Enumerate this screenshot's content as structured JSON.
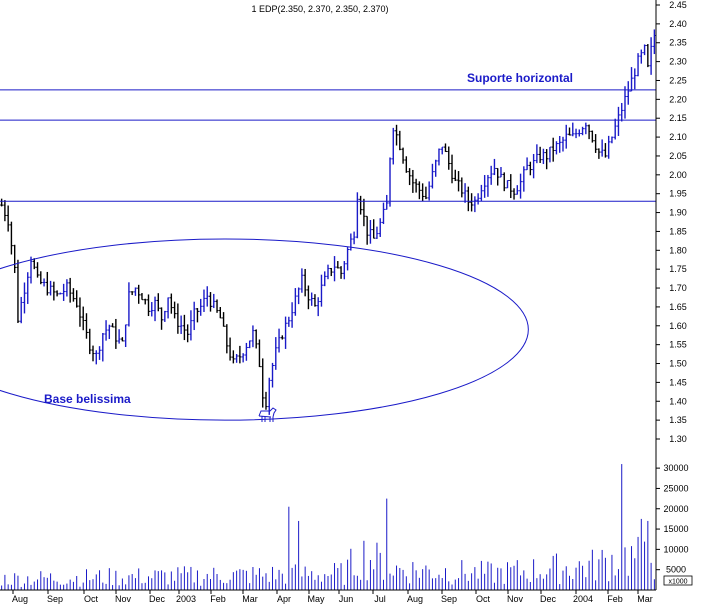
{
  "chart_data": {
    "type": "ohlc",
    "title": "1 EDP(2.350, 2.370, 2.350, 2.370)",
    "colors": {
      "price_up": "#1a1ac8",
      "price_down": "#000000",
      "volume": "#1a1ac8",
      "annotation": "#1a1ac8",
      "axis": "#000000"
    },
    "price_axis": {
      "ylim": [
        1.28,
        2.47
      ],
      "ticks": [
        "1.30",
        "1.35",
        "1.40",
        "1.45",
        "1.50",
        "1.55",
        "1.60",
        "1.65",
        "1.70",
        "1.75",
        "1.80",
        "1.85",
        "1.90",
        "1.95",
        "2.00",
        "2.05",
        "2.10",
        "2.15",
        "2.20",
        "2.25",
        "2.30",
        "2.35",
        "2.40",
        "2.45"
      ]
    },
    "volume_axis": {
      "ylim": [
        0,
        34000
      ],
      "ticks": [
        "5000",
        "10000",
        "15000",
        "20000",
        "25000",
        "30000"
      ],
      "unit_label": "x1000"
    },
    "x_axis": {
      "months": [
        "Aug",
        "Sep",
        "Oct",
        "Nov",
        "Dec",
        "2003",
        "Feb",
        "Mar",
        "Apr",
        "May",
        "Jun",
        "Jul",
        "Aug",
        "Sep",
        "Oct",
        "Nov",
        "Dec",
        "2004",
        "Feb",
        "Mar"
      ]
    },
    "price_path": [
      [
        0,
        1.92
      ],
      [
        2,
        1.88
      ],
      [
        4,
        1.75
      ],
      [
        5,
        1.62
      ],
      [
        7,
        1.7
      ],
      [
        9,
        1.78
      ],
      [
        11,
        1.72
      ],
      [
        14,
        1.7
      ],
      [
        17,
        1.68
      ],
      [
        20,
        1.7
      ],
      [
        23,
        1.66
      ],
      [
        25,
        1.6
      ],
      [
        27,
        1.55
      ],
      [
        29,
        1.52
      ],
      [
        31,
        1.58
      ],
      [
        33,
        1.6
      ],
      [
        35,
        1.57
      ],
      [
        37,
        1.55
      ],
      [
        39,
        1.68
      ],
      [
        41,
        1.7
      ],
      [
        43,
        1.68
      ],
      [
        45,
        1.65
      ],
      [
        47,
        1.66
      ],
      [
        49,
        1.62
      ],
      [
        51,
        1.68
      ],
      [
        53,
        1.62
      ],
      [
        55,
        1.6
      ],
      [
        57,
        1.58
      ],
      [
        59,
        1.63
      ],
      [
        61,
        1.65
      ],
      [
        63,
        1.68
      ],
      [
        65,
        1.65
      ],
      [
        67,
        1.62
      ],
      [
        69,
        1.55
      ],
      [
        71,
        1.5
      ],
      [
        73,
        1.52
      ],
      [
        75,
        1.55
      ],
      [
        77,
        1.58
      ],
      [
        79,
        1.5
      ],
      [
        80,
        1.42
      ],
      [
        81,
        1.4
      ],
      [
        82,
        1.46
      ],
      [
        84,
        1.53
      ],
      [
        86,
        1.58
      ],
      [
        88,
        1.62
      ],
      [
        90,
        1.67
      ],
      [
        92,
        1.72
      ],
      [
        94,
        1.68
      ],
      [
        96,
        1.65
      ],
      [
        98,
        1.7
      ],
      [
        100,
        1.74
      ],
      [
        102,
        1.76
      ],
      [
        104,
        1.74
      ],
      [
        106,
        1.8
      ],
      [
        108,
        1.85
      ],
      [
        109,
        1.95
      ],
      [
        110,
        1.92
      ],
      [
        112,
        1.85
      ],
      [
        114,
        1.83
      ],
      [
        116,
        1.87
      ],
      [
        118,
        1.92
      ],
      [
        119,
        2.05
      ],
      [
        120,
        2.13
      ],
      [
        122,
        2.08
      ],
      [
        124,
        2.02
      ],
      [
        126,
        1.98
      ],
      [
        128,
        1.96
      ],
      [
        130,
        1.94
      ],
      [
        132,
        2.0
      ],
      [
        134,
        2.06
      ],
      [
        135,
        2.08
      ],
      [
        137,
        2.03
      ],
      [
        139,
        1.98
      ],
      [
        141,
        1.96
      ],
      [
        143,
        1.93
      ],
      [
        145,
        1.93
      ],
      [
        147,
        1.97
      ],
      [
        149,
        2.0
      ],
      [
        151,
        2.02
      ],
      [
        153,
        1.99
      ],
      [
        155,
        1.97
      ],
      [
        157,
        1.96
      ],
      [
        159,
        1.98
      ],
      [
        161,
        2.02
      ],
      [
        163,
        2.03
      ],
      [
        165,
        2.05
      ],
      [
        167,
        2.05
      ],
      [
        169,
        2.07
      ],
      [
        171,
        2.08
      ],
      [
        173,
        2.1
      ],
      [
        175,
        2.1
      ],
      [
        177,
        2.12
      ],
      [
        179,
        2.14
      ],
      [
        181,
        2.1
      ],
      [
        183,
        2.06
      ],
      [
        185,
        2.05
      ],
      [
        187,
        2.1
      ],
      [
        189,
        2.15
      ],
      [
        191,
        2.2
      ],
      [
        193,
        2.25
      ],
      [
        195,
        2.3
      ],
      [
        197,
        2.33
      ],
      [
        198,
        2.28
      ],
      [
        199,
        2.33
      ],
      [
        200,
        2.37
      ]
    ],
    "volume_profile": [
      [
        0,
        0.15
      ],
      [
        105,
        0.22
      ],
      [
        110,
        0.48
      ],
      [
        120,
        0.28
      ],
      [
        150,
        0.22
      ],
      [
        182,
        0.33
      ],
      [
        190,
        0.45
      ],
      [
        200,
        0.4
      ]
    ],
    "volume_peaks": [
      [
        88,
        20500
      ],
      [
        91,
        17000
      ],
      [
        118,
        22500
      ],
      [
        190,
        31000
      ],
      [
        196,
        17500
      ],
      [
        198,
        17000
      ]
    ],
    "annotations": {
      "support_label": "Suporte horizontal",
      "base_label": "Base belissima",
      "horizontal_lines": [
        1.93,
        2.145,
        2.225
      ],
      "ellipse_center": [
        50,
        1.59
      ],
      "ellipse_radius": [
        62,
        0.24
      ],
      "bull_icon": "bull-icon"
    }
  }
}
